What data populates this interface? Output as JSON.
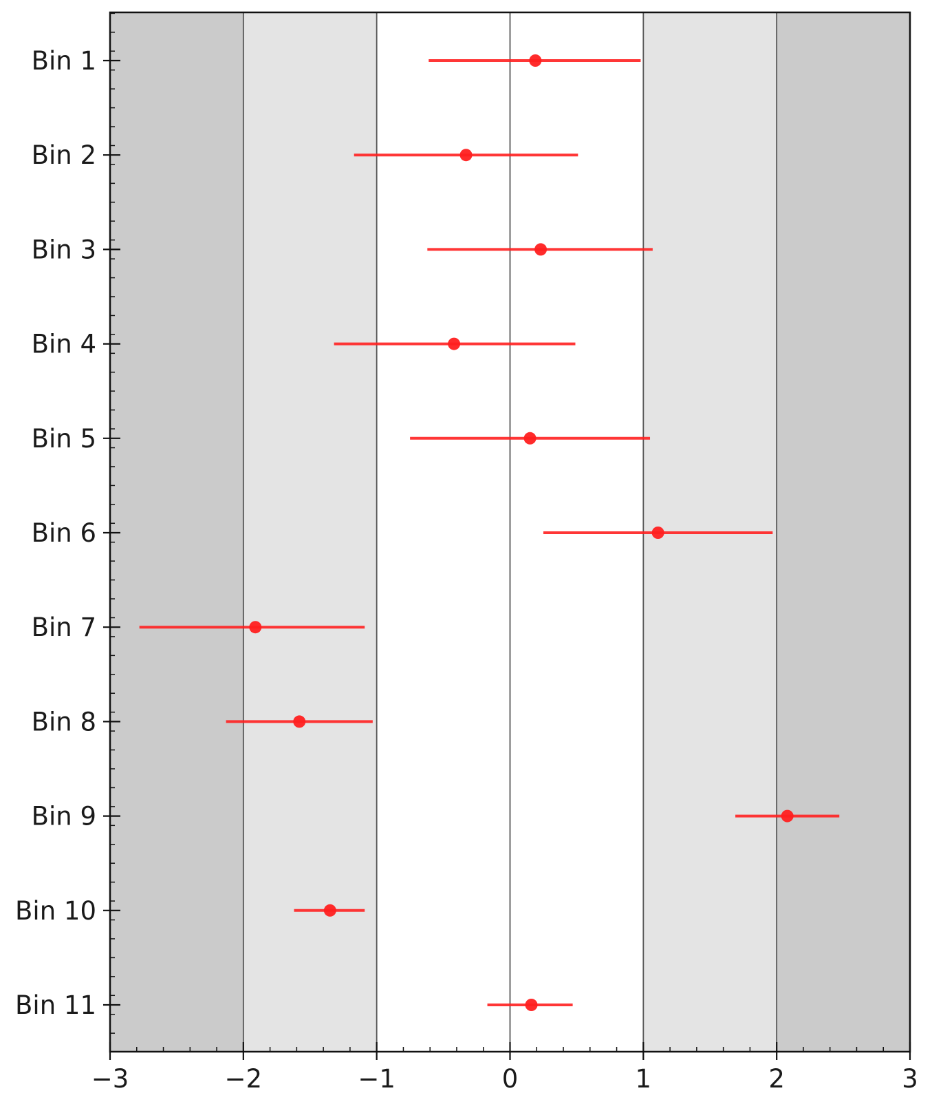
{
  "chart_data": {
    "type": "scatter",
    "orientation": "horizontal-errorbar",
    "title": "",
    "xlabel": "",
    "ylabel": "",
    "xlim": [
      -3,
      3
    ],
    "x_ticks": [
      -3,
      -2,
      -1,
      0,
      1,
      2,
      3
    ],
    "x_tick_labels": [
      "−3",
      "−2",
      "−1",
      "0",
      "1",
      "2",
      "3"
    ],
    "x_minor_step": 0.2,
    "y_minor_step": 0.2,
    "grid": "vertical lines at integer x",
    "bands": [
      {
        "from": -3,
        "to": -2,
        "color": "#cbcbcb"
      },
      {
        "from": -2,
        "to": -1,
        "color": "#e4e4e4"
      },
      {
        "from": -1,
        "to": 1,
        "color": "#ffffff"
      },
      {
        "from": 1,
        "to": 2,
        "color": "#e4e4e4"
      },
      {
        "from": 2,
        "to": 3,
        "color": "#cbcbcb"
      }
    ],
    "marker_color": "#ff2020",
    "categories": [
      "Bin 1",
      "Bin 2",
      "Bin 3",
      "Bin 4",
      "Bin 5",
      "Bin 6",
      "Bin 7",
      "Bin 8",
      "Bin 9",
      "Bin 10",
      "Bin 11"
    ],
    "points": [
      {
        "value": 0.19,
        "low": -0.61,
        "high": 0.98
      },
      {
        "value": -0.33,
        "low": -1.17,
        "high": 0.51
      },
      {
        "value": 0.23,
        "low": -0.62,
        "high": 1.07
      },
      {
        "value": -0.42,
        "low": -1.32,
        "high": 0.49
      },
      {
        "value": 0.15,
        "low": -0.75,
        "high": 1.05
      },
      {
        "value": 1.11,
        "low": 0.25,
        "high": 1.97
      },
      {
        "value": -1.91,
        "low": -2.78,
        "high": -1.09
      },
      {
        "value": -1.58,
        "low": -2.13,
        "high": -1.03
      },
      {
        "value": 2.08,
        "low": 1.69,
        "high": 2.47
      },
      {
        "value": -1.35,
        "low": -1.62,
        "high": -1.09
      },
      {
        "value": 0.16,
        "low": -0.17,
        "high": 0.47
      }
    ]
  }
}
